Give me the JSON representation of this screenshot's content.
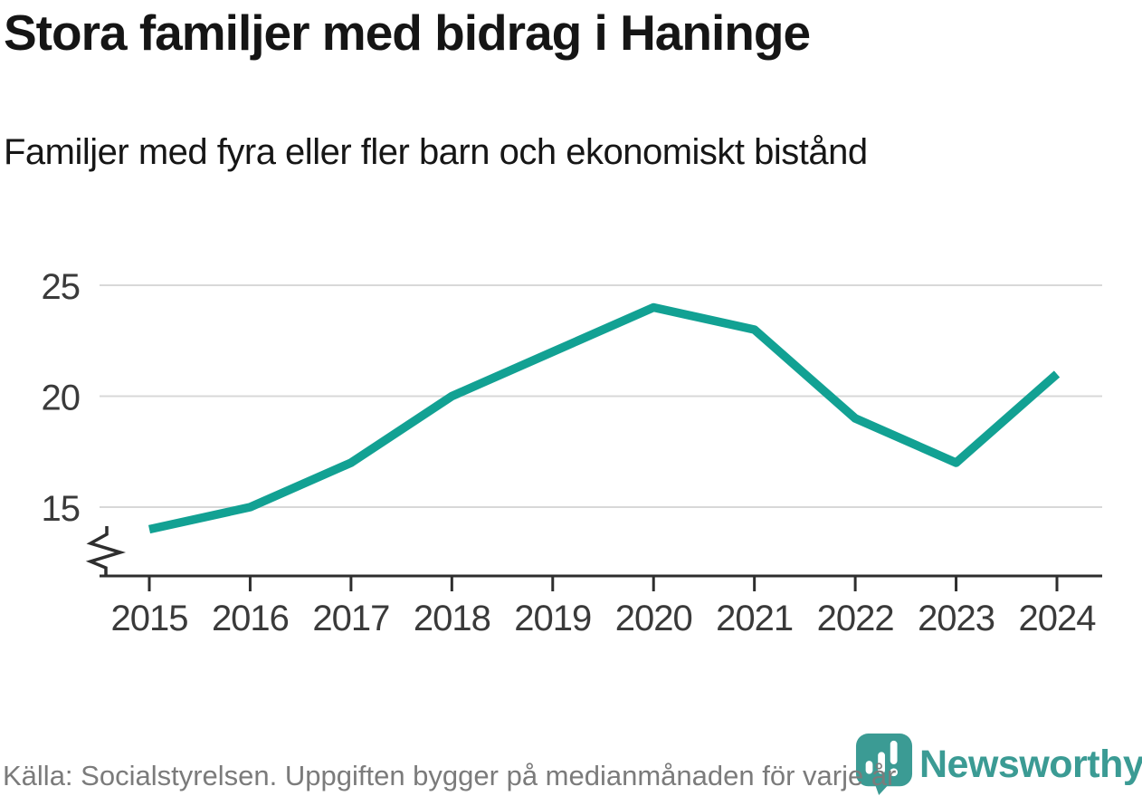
{
  "title": "Stora familjer med bidrag i Haninge",
  "subtitle": "Familjer med fyra eller fler barn och ekonomiskt bistånd",
  "footer": {
    "source": "Källa: Socialstyrelsen. Uppgiften bygger på medianmånaden för varje år",
    "brand": "Newsworthy"
  },
  "colors": {
    "line": "#12a193",
    "grid": "#d8d8d8",
    "axis": "#2e2e2e",
    "tick_label": "#3a3a3a",
    "title": "#151515",
    "source_text": "#7b7b7b",
    "brand": "#3b9b94"
  },
  "chart_data": {
    "type": "line",
    "title": "Stora familjer med bidrag i Haninge",
    "subtitle": "Familjer med fyra eller fler barn och ekonomiskt bistånd",
    "x": [
      2015,
      2016,
      2017,
      2018,
      2019,
      2020,
      2021,
      2022,
      2023,
      2024
    ],
    "series": [
      {
        "name": "Familjer med fyra eller fler barn och ekonomiskt bistånd",
        "values": [
          14,
          15,
          17,
          20,
          22,
          24,
          23,
          19,
          17,
          21
        ]
      }
    ],
    "yticks": [
      15,
      20,
      25
    ],
    "ylim": [
      13,
      26
    ],
    "xlabel": "",
    "ylabel": "",
    "grid": "horizontal",
    "legend": "none",
    "axis_break": true
  }
}
